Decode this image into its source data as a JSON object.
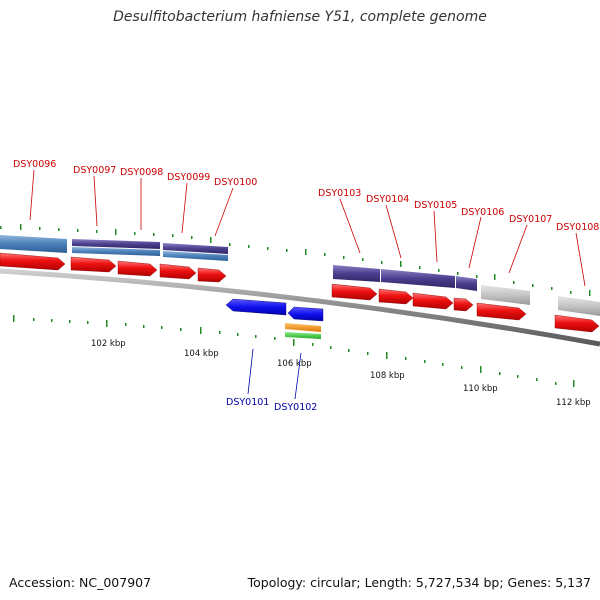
{
  "title": "Desulfitobacterium hafniense Y51, complete genome",
  "footer": {
    "accession": "Accession: NC_007907",
    "summary": "Topology: circular; Length: 5,727,534 bp; Genes: 5,137"
  },
  "colors": {
    "forward_label": "#cc0000",
    "reverse_label": "#0000aa",
    "tick": "#228822",
    "backbone": "#888888"
  },
  "genes": [
    {
      "id": "DSY0096",
      "strand": "forward"
    },
    {
      "id": "DSY0097",
      "strand": "forward"
    },
    {
      "id": "DSY0098",
      "strand": "forward"
    },
    {
      "id": "DSY0099",
      "strand": "forward"
    },
    {
      "id": "DSY0100",
      "strand": "forward"
    },
    {
      "id": "DSY0101",
      "strand": "reverse"
    },
    {
      "id": "DSY0102",
      "strand": "reverse"
    },
    {
      "id": "DSY0103",
      "strand": "forward"
    },
    {
      "id": "DSY0104",
      "strand": "forward"
    },
    {
      "id": "DSY0105",
      "strand": "forward"
    },
    {
      "id": "DSY0106",
      "strand": "forward"
    },
    {
      "id": "DSY0107",
      "strand": "forward"
    },
    {
      "id": "DSY0108",
      "strand": "forward"
    }
  ],
  "scale_labels": [
    "102 kbp",
    "104 kbp",
    "106 kbp",
    "108 kbp",
    "110 kbp",
    "112 kbp"
  ]
}
